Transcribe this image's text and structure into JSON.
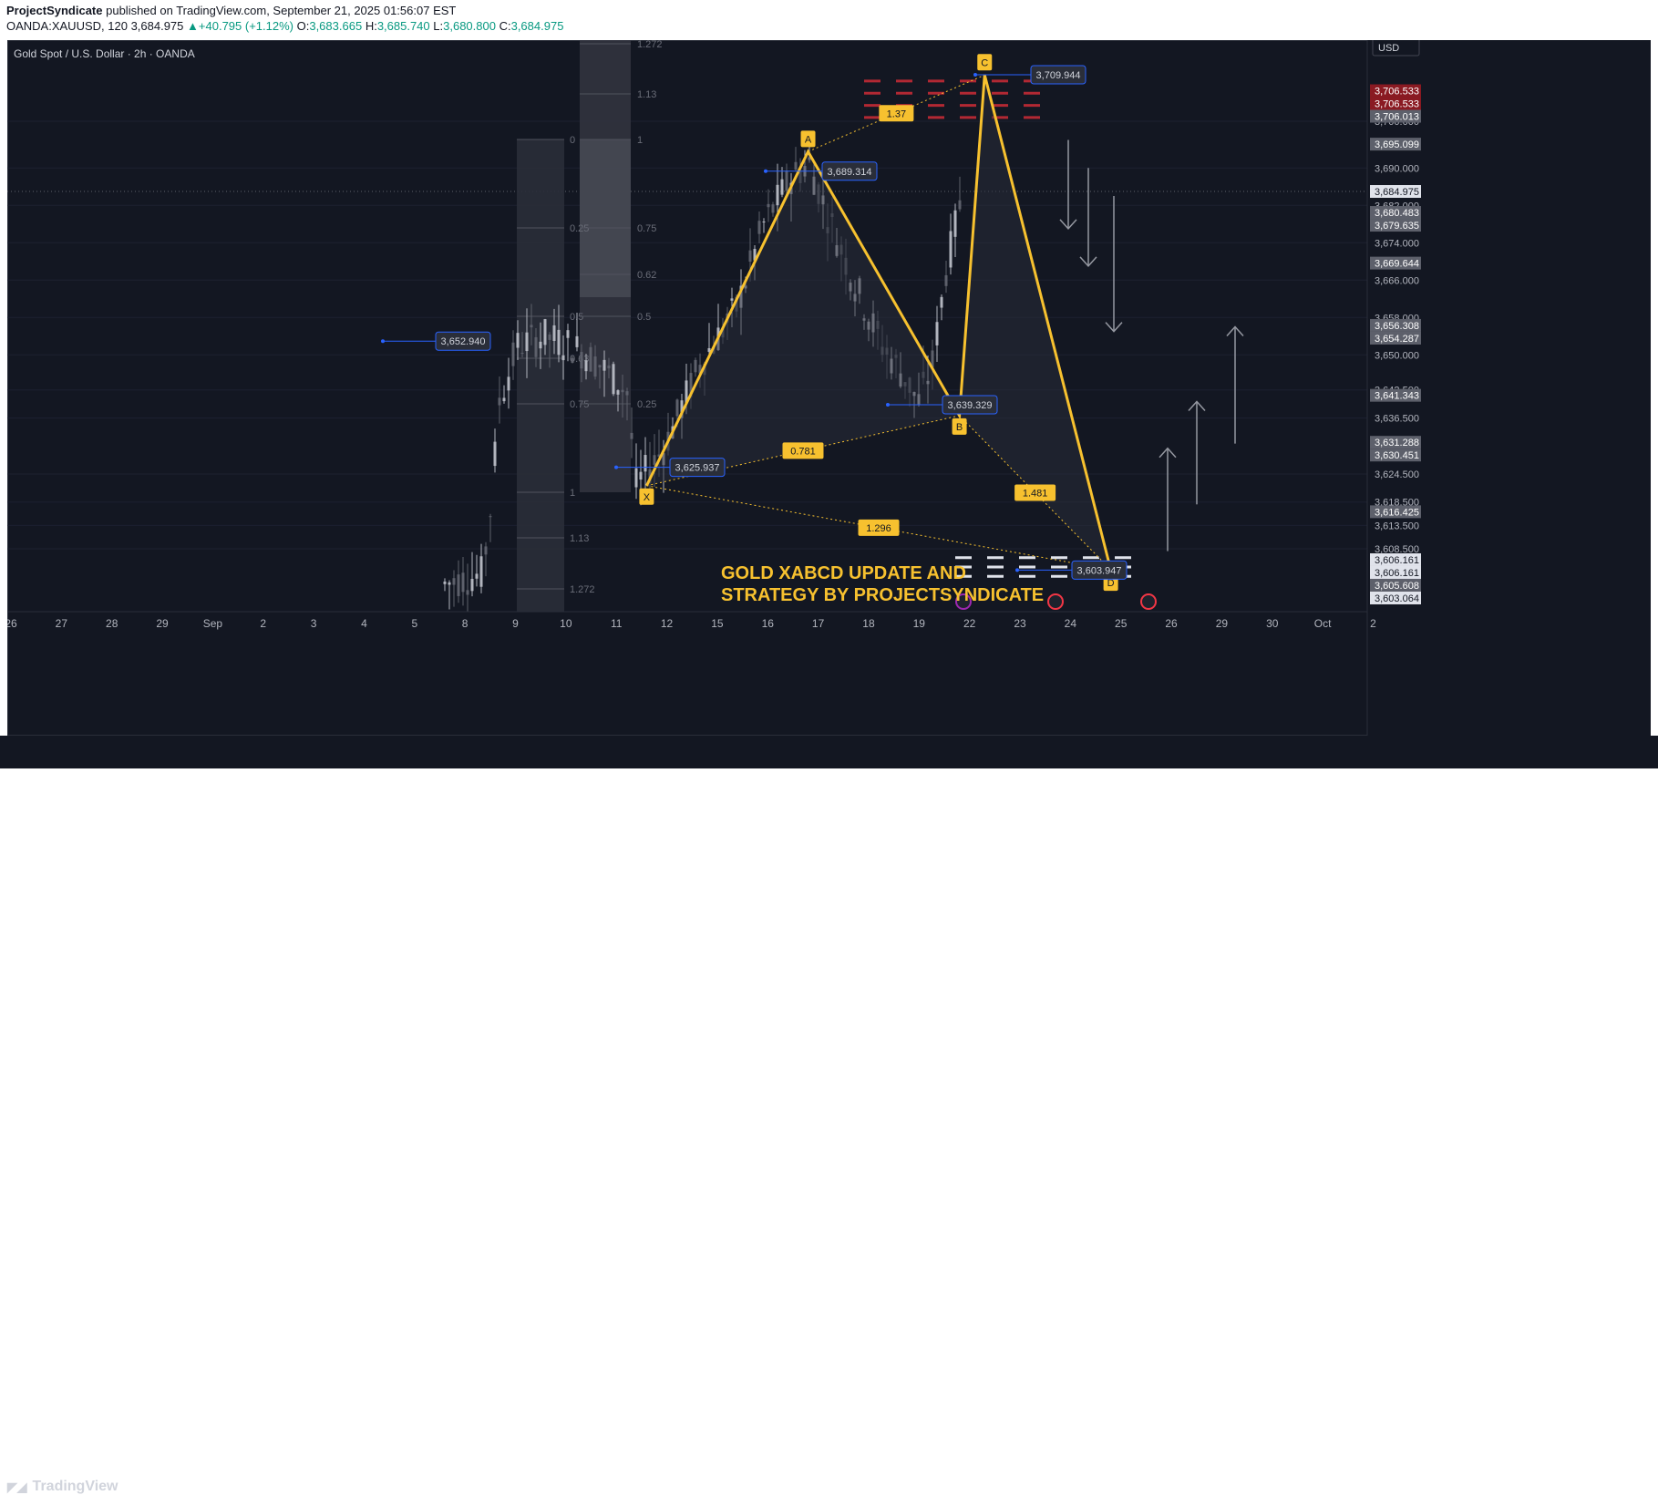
{
  "header": {
    "publisher": "ProjectSyndicate",
    "published_text": " published on TradingView.com, September 21, 2025 01:56:07 EST",
    "symbol": "OANDA:XAUUSD, 120",
    "last": "3,684.975",
    "change": "+40.795 (+1.12%)",
    "o_label": "O:",
    "o": "3,683.665",
    "h_label": "H:",
    "h": "3,685.740",
    "l_label": "L:",
    "l": "3,680.800",
    "c_label": "C:",
    "c": "3,684.975"
  },
  "chart_title": "Gold Spot / U.S. Dollar · 2h · OANDA",
  "currency": "USD",
  "annotation_title_line1": "GOLD XABCD UPDATE AND",
  "annotation_title_line2": "STRATEGY BY PROJECTSYNDICATE",
  "brand": "TradingView",
  "colors": {
    "background": "#131722",
    "pattern": "#f7c12f",
    "label_blue": "#2962ff",
    "red_zone": "#b22833"
  },
  "chart_data": {
    "type": "candlestick",
    "ylim": [
      3600.5,
      3717.5
    ],
    "x_axis_labels": [
      "26",
      "27",
      "28",
      "29",
      "Sep",
      "2",
      "3",
      "4",
      "5",
      "8",
      "9",
      "10",
      "11",
      "12",
      "15",
      "16",
      "17",
      "18",
      "19",
      "22",
      "23",
      "24",
      "25",
      "26",
      "29",
      "30",
      "Oct",
      "2"
    ],
    "y_axis_ticks": [
      3700.0,
      3690.0,
      3682.0,
      3674.0,
      3666.0,
      3658.0,
      3650.0,
      3642.5,
      3636.5,
      3624.5,
      3618.5,
      3613.5,
      3608.5
    ],
    "y_tick_labels": [
      "3,700.000",
      "3,690.000",
      "3,682.000",
      "3,674.000",
      "3,666.000",
      "3,658.000",
      "3,650.000",
      "3,642.500",
      "3,636.500",
      "3,624.500",
      "3,618.500",
      "3,613.500",
      "3,608.500"
    ],
    "price_tags": [
      {
        "value": 3706.533,
        "label": "3,706.533",
        "style": "red"
      },
      {
        "value": 3706.533,
        "label": "3,706.533",
        "style": "red"
      },
      {
        "value": 3706.013,
        "label": "3,706.013",
        "style": "grey"
      },
      {
        "value": 3695.099,
        "label": "3,695.099",
        "style": "grey"
      },
      {
        "value": 3684.975,
        "label": "3,684.975",
        "style": "current"
      },
      {
        "value": 3680.483,
        "label": "3,680.483",
        "style": "grey"
      },
      {
        "value": 3679.635,
        "label": "3,679.635",
        "style": "grey"
      },
      {
        "value": 3669.644,
        "label": "3,669.644",
        "style": "grey"
      },
      {
        "value": 3656.308,
        "label": "3,656.308",
        "style": "grey"
      },
      {
        "value": 3654.287,
        "label": "3,654.287",
        "style": "grey"
      },
      {
        "value": 3641.343,
        "label": "3,641.343",
        "style": "grey"
      },
      {
        "value": 3631.288,
        "label": "3,631.288",
        "style": "grey"
      },
      {
        "value": 3630.451,
        "label": "3,630.451",
        "style": "grey"
      },
      {
        "value": 3616.425,
        "label": "3,616.425",
        "style": "grey"
      },
      {
        "value": 3606.161,
        "label": "3,606.161",
        "style": "white"
      },
      {
        "value": 3606.161,
        "label": "3,606.161",
        "style": "white"
      },
      {
        "value": 3605.608,
        "label": "3,605.608",
        "style": "grey"
      },
      {
        "value": 3603.064,
        "label": "3,603.064",
        "style": "white"
      }
    ],
    "xabcd": [
      {
        "name": "X",
        "date": "2025-09-11",
        "price": 3622.0
      },
      {
        "name": "A",
        "date": "2025-09-16",
        "price": 3693.5
      },
      {
        "name": "B",
        "date": "2025-09-19",
        "price": 3637.0
      },
      {
        "name": "C",
        "date": "2025-09-22",
        "price": 3709.9
      },
      {
        "name": "D",
        "date": "2025-09-24",
        "price": 3604.0
      }
    ],
    "ratios": [
      "1.37",
      "0.781",
      "1.481",
      "1.296"
    ],
    "price_labels": [
      {
        "text": "3,709.944",
        "price": 3709.944
      },
      {
        "text": "3,689.314",
        "price": 3689.314
      },
      {
        "text": "3,652.940",
        "price": 3652.94
      },
      {
        "text": "3,639.329",
        "price": 3639.329
      },
      {
        "text": "3,625.937",
        "price": 3625.937
      },
      {
        "text": "3,603.947",
        "price": 3603.947
      }
    ],
    "fib_left_levels": [
      "0",
      "0.25",
      "0.5",
      "0.63",
      "0.75",
      "1",
      "1.13",
      "1.272"
    ],
    "fib_right_levels": [
      "1.272",
      "1.13",
      "1",
      "0.75",
      "0.62",
      "0.5",
      "0.25"
    ]
  }
}
